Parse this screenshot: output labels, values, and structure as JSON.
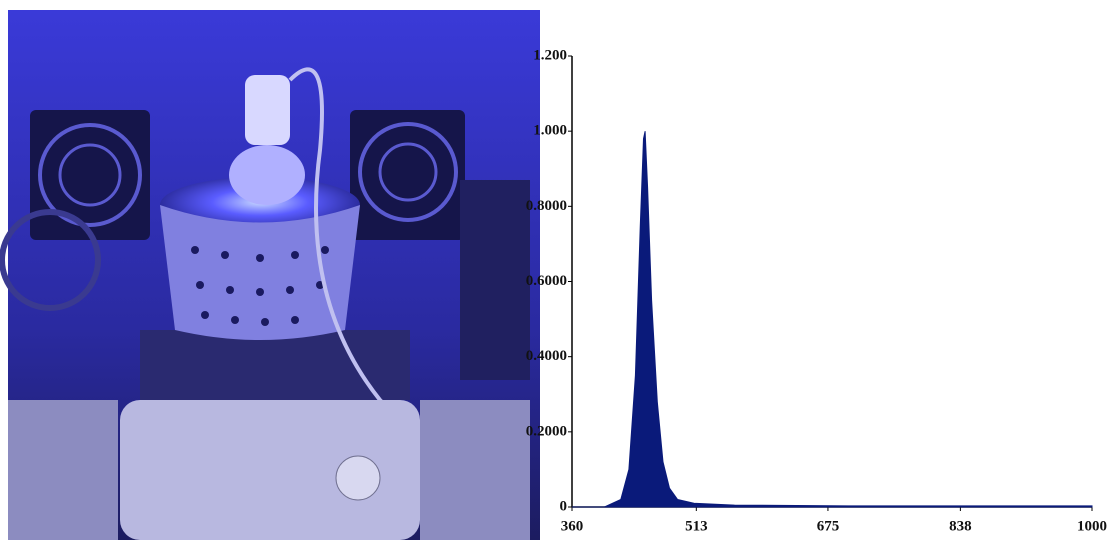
{
  "chart_data": {
    "type": "area",
    "x": [
      360,
      400,
      420,
      430,
      438,
      444,
      448,
      450,
      453,
      458,
      465,
      472,
      480,
      490,
      510,
      560,
      700,
      1000
    ],
    "values": [
      0,
      0,
      0.02,
      0.1,
      0.35,
      0.75,
      0.98,
      1.0,
      0.85,
      0.55,
      0.28,
      0.12,
      0.05,
      0.02,
      0.01,
      0.005,
      0.003,
      0.003
    ],
    "color": "#0a1a7a",
    "xlim": [
      360,
      1000
    ],
    "xticks": [
      360,
      513,
      675,
      838,
      1000
    ],
    "ylim": [
      0,
      1.2
    ],
    "yticks": [
      0,
      {
        "value": 0.2,
        "label": "0.2000"
      },
      {
        "value": 0.4,
        "label": "0.4000"
      },
      {
        "value": 0.6,
        "label": "0.6000"
      },
      {
        "value": 0.8,
        "label": "0.8000"
      },
      {
        "value": 1.0,
        "label": "1.000"
      },
      {
        "value": 1.2,
        "label": "1.200"
      }
    ]
  }
}
